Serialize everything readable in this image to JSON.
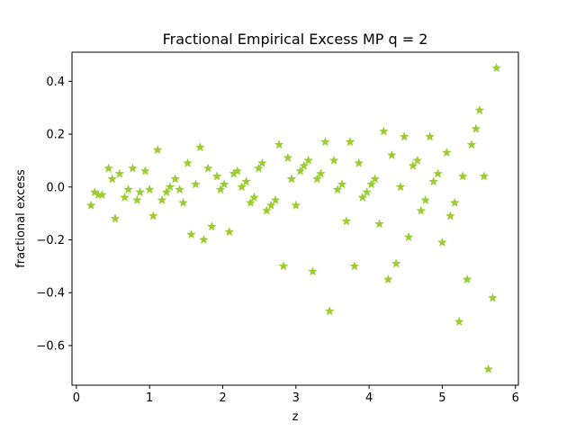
{
  "chart_data": {
    "type": "scatter",
    "title": "Fractional Empirical Excess MP q = 2",
    "xlabel": "z",
    "ylabel": "fractional excess",
    "xlim": [
      -0.06,
      6.04
    ],
    "ylim": [
      -0.75,
      0.51
    ],
    "xticks": [
      0,
      1,
      2,
      3,
      4,
      5,
      6
    ],
    "yticks": [
      -0.6,
      -0.4,
      -0.2,
      0.0,
      0.2,
      0.4
    ],
    "xtick_labels": [
      "0",
      "1",
      "2",
      "3",
      "4",
      "5",
      "6"
    ],
    "ytick_labels": [
      "−0.6",
      "−0.4",
      "−0.2",
      "0.0",
      "0.2",
      "0.4"
    ],
    "grid": false,
    "legend": "none",
    "marker": "star",
    "marker_color": "#9acd32",
    "x": [
      0.2,
      0.25,
      0.3,
      0.35,
      0.44,
      0.49,
      0.53,
      0.59,
      0.66,
      0.71,
      0.77,
      0.83,
      0.87,
      0.94,
      1.0,
      1.05,
      1.11,
      1.17,
      1.23,
      1.28,
      1.35,
      1.41,
      1.46,
      1.52,
      1.57,
      1.63,
      1.69,
      1.74,
      1.8,
      1.85,
      1.92,
      1.97,
      2.02,
      2.09,
      2.15,
      2.2,
      2.26,
      2.32,
      2.38,
      2.43,
      2.49,
      2.54,
      2.6,
      2.66,
      2.72,
      2.77,
      2.83,
      2.89,
      2.94,
      3.0,
      3.06,
      3.11,
      3.17,
      3.23,
      3.29,
      3.34,
      3.4,
      3.46,
      3.52,
      3.57,
      3.63,
      3.69,
      3.74,
      3.8,
      3.86,
      3.91,
      3.97,
      4.03,
      4.08,
      4.14,
      4.2,
      4.26,
      4.31,
      4.37,
      4.43,
      4.48,
      4.54,
      4.6,
      4.66,
      4.71,
      4.77,
      4.83,
      4.88,
      4.94,
      5.0,
      5.06,
      5.11,
      5.17,
      5.23,
      5.28,
      5.34,
      5.4,
      5.46,
      5.51,
      5.57,
      5.63,
      5.69,
      5.74
    ],
    "y": [
      -0.07,
      -0.02,
      -0.03,
      -0.03,
      0.07,
      0.03,
      -0.12,
      0.05,
      -0.04,
      -0.01,
      0.07,
      -0.05,
      -0.02,
      0.06,
      -0.01,
      -0.11,
      0.14,
      -0.05,
      -0.02,
      0.0,
      0.03,
      -0.01,
      -0.06,
      0.09,
      -0.18,
      0.01,
      0.15,
      -0.2,
      0.07,
      -0.15,
      0.04,
      -0.01,
      0.01,
      -0.17,
      0.05,
      0.06,
      0.0,
      0.02,
      -0.06,
      -0.04,
      0.07,
      0.09,
      -0.09,
      -0.07,
      -0.05,
      0.16,
      -0.3,
      0.11,
      0.03,
      -0.07,
      0.06,
      0.08,
      0.1,
      -0.32,
      0.03,
      0.05,
      0.17,
      -0.47,
      0.1,
      -0.01,
      0.01,
      -0.13,
      0.17,
      -0.3,
      0.09,
      -0.04,
      -0.02,
      0.01,
      0.03,
      -0.14,
      0.21,
      -0.35,
      0.12,
      -0.29,
      0.0,
      0.19,
      -0.19,
      0.08,
      0.1,
      -0.09,
      -0.05,
      0.19,
      0.02,
      0.05,
      -0.21,
      0.13,
      -0.11,
      -0.06,
      -0.51,
      0.04,
      -0.35,
      0.16,
      0.22,
      0.29,
      0.04,
      -0.69,
      -0.42,
      0.45
    ]
  }
}
